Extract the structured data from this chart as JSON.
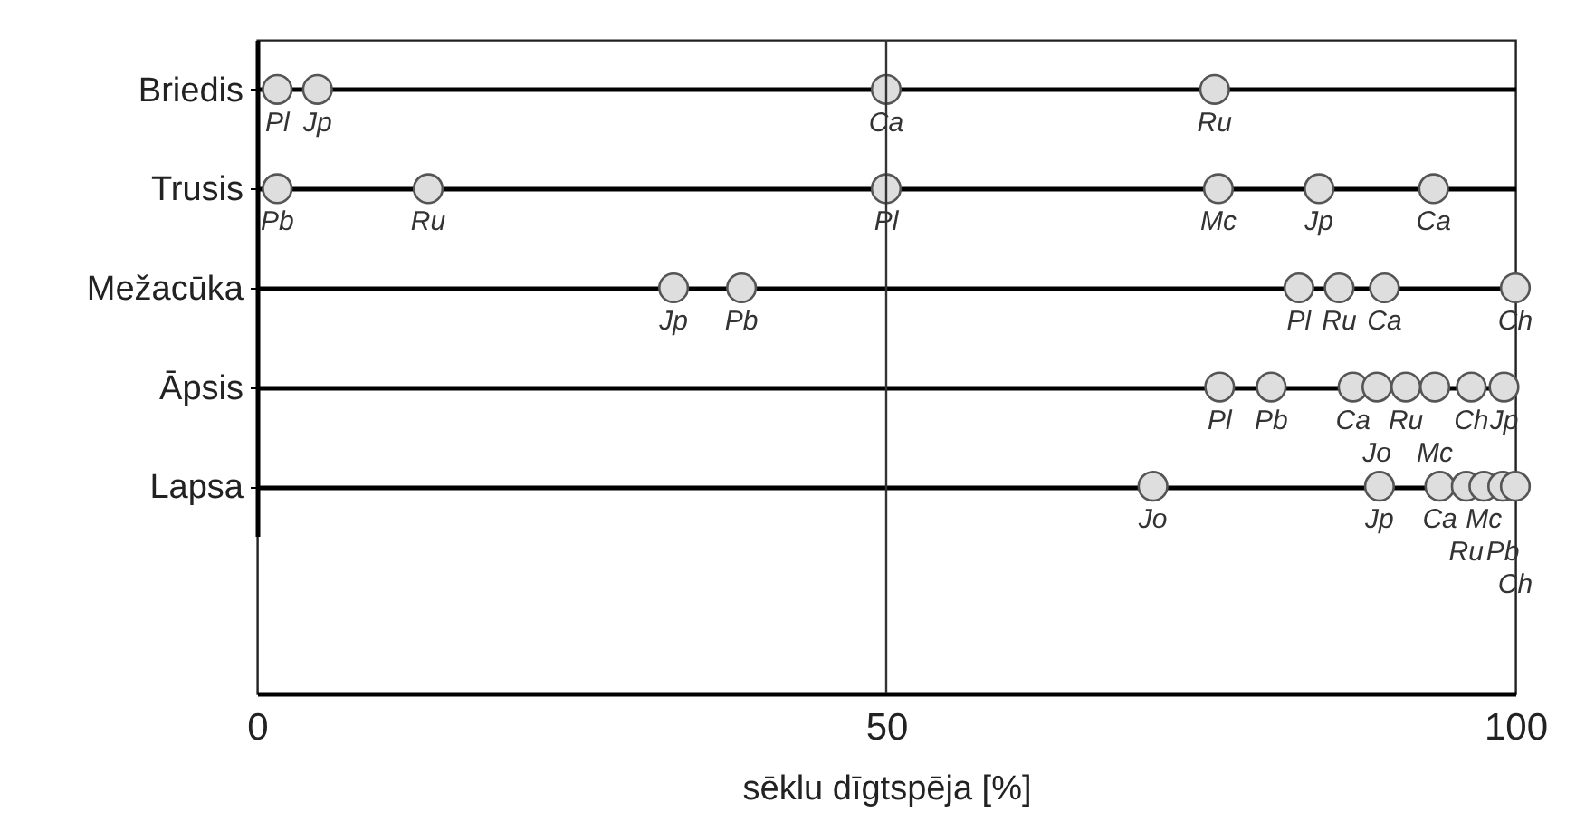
{
  "chart_data": {
    "type": "scatter",
    "orientation": "horizontal",
    "xlabel": "sēklu dīgtspēja [%]",
    "categories": [
      "Briedis",
      "Trusis",
      "Mežacūka",
      "Āpsis",
      "Lapsa"
    ],
    "xlim": [
      0,
      100
    ],
    "xticks": [
      0,
      50,
      100
    ],
    "grid": "y",
    "ref_lines": [
      {
        "axis": "x",
        "value": 50
      }
    ],
    "marker": "circle",
    "series": [
      {
        "name": "Pl",
        "color": "#dedede",
        "values": [
          1.6,
          50,
          82.8,
          76.5,
          null
        ]
      },
      {
        "name": "Jp",
        "color": "#dedede",
        "values": [
          4.8,
          84.4,
          33.1,
          99.1,
          89.2
        ]
      },
      {
        "name": "Ca",
        "color": "#dedede",
        "values": [
          50,
          93.5,
          89.6,
          87.1,
          94
        ]
      },
      {
        "name": "Ru",
        "color": "#dedede",
        "values": [
          76.1,
          13.6,
          86,
          91.3,
          96.1
        ]
      },
      {
        "name": "Pb",
        "color": "#dedede",
        "values": [
          null,
          1.6,
          38.5,
          80.6,
          99
        ]
      },
      {
        "name": "Mc",
        "color": "#dedede",
        "values": [
          null,
          76.4,
          null,
          93.6,
          97.5
        ]
      },
      {
        "name": "Ch",
        "color": "#dedede",
        "values": [
          null,
          null,
          100,
          96.5,
          100
        ]
      },
      {
        "name": "Jo",
        "color": "#dedede",
        "values": [
          null,
          null,
          null,
          89,
          71.2
        ]
      }
    ]
  }
}
